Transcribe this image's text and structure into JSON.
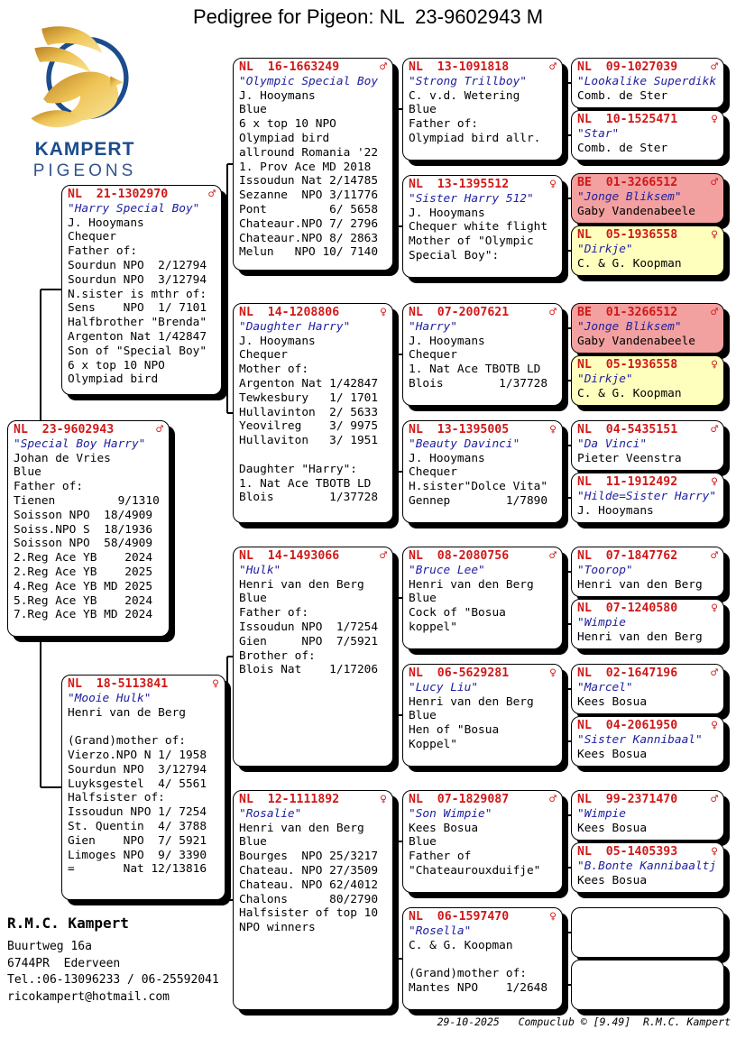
{
  "title": "Pedigree for Pigeon: NL  23-9602943 M",
  "logo": {
    "brand_top": "KAMPERT",
    "brand_bottom": "PIGEONS"
  },
  "colors": {
    "ring_red": "#d01818",
    "name_blue": "#2020a0",
    "box_pink": "#f2a0a0",
    "box_yellow": "#ffffbd",
    "logo_blue": "#1c4c8c",
    "logo_gold": "#e8b23a"
  },
  "boxes": {
    "root": {
      "ring": "NL  23-9602943",
      "sex": "♂",
      "name": "\"Special Boy Harry\"",
      "body": "Johan de Vries\nBlue\nFather of:\nTienen         9/1310\nSoisson NPO  18/4909\nSoiss.NPO S  18/1936\nSoisson NPO  58/4909\n2.Reg Ace YB    2024\n2.Reg Ace YB    2025\n4.Reg Ace YB MD 2025\n5.Reg Ace YB    2024\n7.Reg Ace YB MD 2024"
    },
    "father": {
      "ring": "NL  21-1302970",
      "sex": "♂",
      "name": "\"Harry Special Boy\"",
      "body": "J. Hooymans\nChequer\nFather of:\nSourdun NPO  2/12794\nSourdun NPO  3/12794\nN.sister is mthr of:\nSens    NPO  1/ 7101\nHalfbrother \"Brenda\"\nArgenton Nat 1/42847\nSon of \"Special Boy\"\n6 x top 10 NPO\nOlympiad bird"
    },
    "mother": {
      "ring": "NL  18-5113841",
      "sex": "♀",
      "name": "\"Mooie Hulk\"",
      "body": "Henri van de Berg\n\n(Grand)mother of:\nVierzo.NPO N 1/ 1958\nSourdun NPO  3/12794\nLuyksgestel  4/ 5561\nHalfsister of:\nIssoudun NPO 1/ 7254\nSt. Quentin  4/ 3788\nGien    NPO  7/ 5921\nLimoges NPO  9/ 3390\n=       Nat 12/13816"
    },
    "ff": {
      "ring": "NL  16-1663249",
      "sex": "♂",
      "name": "\"Olympic Special Boy",
      "body": "J. Hooymans\nBlue\n6 x top 10 NPO\nOlympiad bird\nallround Romania '22\n1. Prov Ace MD 2018\nIssoudun Nat 2/14785\nSezanne  NPO 3/11776\nPont         6/ 5658\nChateaur.NPO 7/ 2796\nChateaur.NPO 8/ 2863\nMelun   NPO 10/ 7140"
    },
    "fm": {
      "ring": "NL  14-1208806",
      "sex": "♀",
      "name": "\"Daughter Harry\"",
      "body": "J. Hooymans\nChequer\nMother of:\nArgenton Nat 1/42847\nTewkesbury   1/ 1701\nHullavinton  2/ 5633\nYeovilreg    3/ 9975\nHullaviton   3/ 1951\n\nDaughter \"Harry\":\n1. Nat Ace TBOTB LD\nBlois        1/37728"
    },
    "mf": {
      "ring": "NL  14-1493066",
      "sex": "♂",
      "name": "\"Hulk\"",
      "body": "Henri van den Berg\nBlue\nFather of:\nIssoudun NPO  1/7254\nGien     NPO  7/5921\nBrother of:\nBlois Nat    1/17206"
    },
    "mm": {
      "ring": "NL  12-1111892",
      "sex": "♀",
      "name": "\"Rosalie\"",
      "body": "Henri van den Berg\nBlue\nBourges  NPO 25/3217\nChateau. NPO 27/3509\nChateau. NPO 62/4012\nChalons      80/2790\nHalfsister of top 10\nNPO winners"
    },
    "fff": {
      "ring": "NL  13-1091818",
      "sex": "♂",
      "name": "\"Strong Trillboy\"",
      "body": "C. v.d. Wetering\nBlue\nFather of:\nOlympiad bird allr."
    },
    "ffm": {
      "ring": "NL  13-1395512",
      "sex": "♀",
      "name": "\"Sister Harry 512\"",
      "body": "J. Hooymans\nChequer white flight\nMother of \"Olympic\nSpecial Boy\":"
    },
    "fmf": {
      "ring": "NL  07-2007621",
      "sex": "♂",
      "name": "\"Harry\"",
      "body": "J. Hooymans\nChequer\n1. Nat Ace TBOTB LD\nBlois        1/37728"
    },
    "fmm": {
      "ring": "NL  13-1395005",
      "sex": "♀",
      "name": "\"Beauty Davinci\"",
      "body": "J. Hooymans\nChequer\nH.sister\"Dolce Vita\"\nGennep        1/7890"
    },
    "mff": {
      "ring": "NL  08-2080756",
      "sex": "♂",
      "name": "\"Bruce Lee\"",
      "body": "Henri van den Berg\nBlue\nCock of \"Bosua\nkoppel\""
    },
    "mfm": {
      "ring": "NL  06-5629281",
      "sex": "♀",
      "name": "\"Lucy Liu\"",
      "body": "Henri van den Berg\nBlue\nHen of \"Bosua\nKoppel\""
    },
    "mmf": {
      "ring": "NL  07-1829087",
      "sex": "♂",
      "name": "\"Son Wimpie\"",
      "body": "Kees Bosua\nBlue\nFather of\n\"Chateaurouxduifje\""
    },
    "mmm": {
      "ring": "NL  06-1597470",
      "sex": "♀",
      "name": "\"Rosella\"",
      "body": "C. & G. Koopman\n\n(Grand)mother of:\nMantes NPO    1/2648"
    },
    "ffff": {
      "ring": "NL  09-1027039",
      "sex": "♂",
      "name": "\"Lookalike Superdikk",
      "body": "Comb. de Ster"
    },
    "fffm": {
      "ring": "NL  10-1525471",
      "sex": "♀",
      "name": "\"Star\"",
      "body": "Comb. de Ster"
    },
    "ffmf": {
      "ring": "BE  01-3266512",
      "sex": "♂",
      "name": "\"Jonge Bliksem\"",
      "body": "Gaby Vandenabeele"
    },
    "ffmm": {
      "ring": "NL  05-1936558",
      "sex": "♀",
      "name": "\"Dirkje\"",
      "body": "C. & G. Koopman"
    },
    "fmff": {
      "ring": "BE  01-3266512",
      "sex": "♂",
      "name": "\"Jonge Bliksem\"",
      "body": "Gaby Vandenabeele"
    },
    "fmfm": {
      "ring": "NL  05-1936558",
      "sex": "♀",
      "name": "\"Dirkje\"",
      "body": "C. & G. Koopman"
    },
    "fmmf": {
      "ring": "NL  04-5435151",
      "sex": "♂",
      "name": "\"Da Vinci\"",
      "body": "Pieter Veenstra"
    },
    "fmmm": {
      "ring": "NL  11-1912492",
      "sex": "♀",
      "name": "\"Hilde=Sister Harry\"",
      "body": "J. Hooymans"
    },
    "mfff": {
      "ring": "NL  07-1847762",
      "sex": "♂",
      "name": "\"Toorop\"",
      "body": "Henri van den Berg"
    },
    "mffm": {
      "ring": "NL  07-1240580",
      "sex": "♀",
      "name": "\"Wimpie",
      "body": "Henri van den Berg"
    },
    "mfmf": {
      "ring": "NL  02-1647196",
      "sex": "♂",
      "name": "\"Marcel\"",
      "body": "Kees Bosua"
    },
    "mfmm": {
      "ring": "NL  04-2061950",
      "sex": "♀",
      "name": "\"Sister Kannibaal\"",
      "body": "Kees Bosua"
    },
    "mmff": {
      "ring": "NL  99-2371470",
      "sex": "♂",
      "name": "\"Wimpie",
      "body": "Kees Bosua"
    },
    "mmfm": {
      "ring": "NL  05-1405393",
      "sex": "♀",
      "name": "\"B.Bonte Kannibaaltj",
      "body": "Kees Bosua"
    }
  },
  "footer": {
    "owner": "R.M.C. Kampert",
    "address_line1": "Buurtweg 16a",
    "address_line2": "6744PR  Ederveen",
    "phone": "Tel.:06-13096233 / 06-25592041",
    "email": "ricokampert@hotmail.com",
    "credits": "29-10-2025   Compuclub © [9.49]  R.M.C. Kampert"
  }
}
